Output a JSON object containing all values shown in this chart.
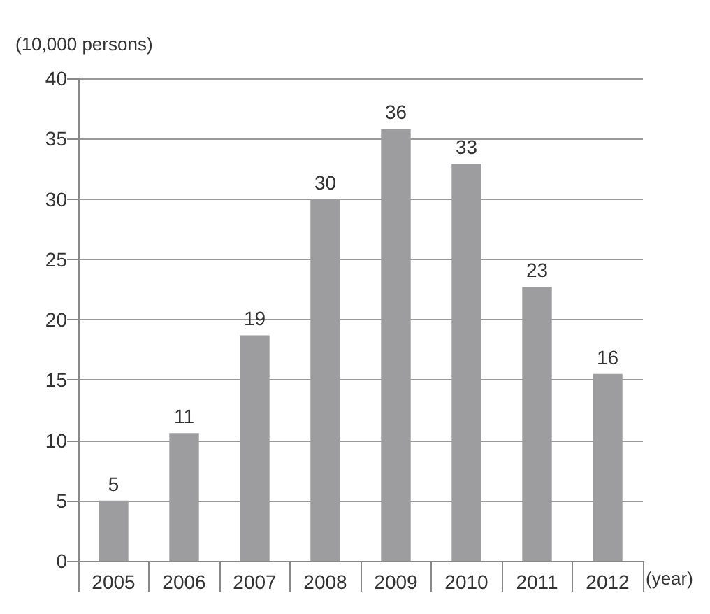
{
  "chart_data": {
    "type": "bar",
    "ylabel": "(10,000 persons)",
    "xlabel": "(year)",
    "categories": [
      "2005",
      "2006",
      "2007",
      "2008",
      "2009",
      "2010",
      "2011",
      "2012"
    ],
    "values": [
      5,
      10.6,
      18.7,
      30,
      35.8,
      32.9,
      22.7,
      15.5
    ],
    "value_labels": [
      "5",
      "11",
      "19",
      "30",
      "36",
      "33",
      "23",
      "16"
    ],
    "color": "#9d9d9f",
    "ylim": [
      0,
      40
    ],
    "yticks": [
      0,
      5,
      10,
      15,
      20,
      25,
      30,
      35,
      40
    ],
    "grid": "y"
  }
}
